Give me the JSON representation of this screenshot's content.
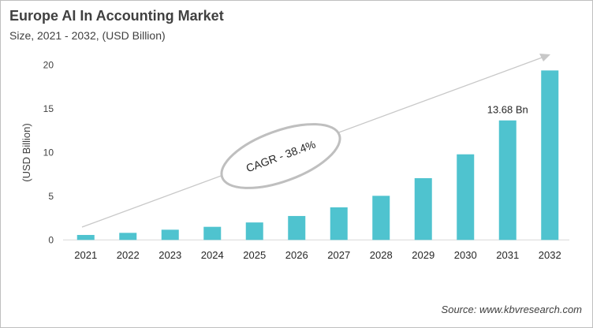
{
  "title": "Europe AI In Accounting Market",
  "subtitle": "Size, 2021 - 2032, (USD Billion)",
  "source": "Source: www.kbvresearch.com",
  "chart_data": {
    "type": "bar",
    "categories": [
      "2021",
      "2022",
      "2023",
      "2024",
      "2025",
      "2026",
      "2027",
      "2028",
      "2029",
      "2030",
      "2031",
      "2032"
    ],
    "values": [
      0.57,
      0.81,
      1.17,
      1.5,
      2.0,
      2.74,
      3.73,
      5.05,
      7.07,
      9.8,
      13.68,
      19.4
    ],
    "ylabel": "(USD Billion)",
    "xlabel": "",
    "ylim": [
      0,
      20
    ],
    "yticks": [
      0,
      5,
      10,
      15,
      20
    ],
    "grid": false,
    "bar_color": "#4fc3cf",
    "annotations": [
      {
        "category": "2031",
        "text": "13.68 Bn"
      },
      {
        "type": "trend-arrow",
        "text": "CAGR - 38.4%"
      }
    ]
  }
}
